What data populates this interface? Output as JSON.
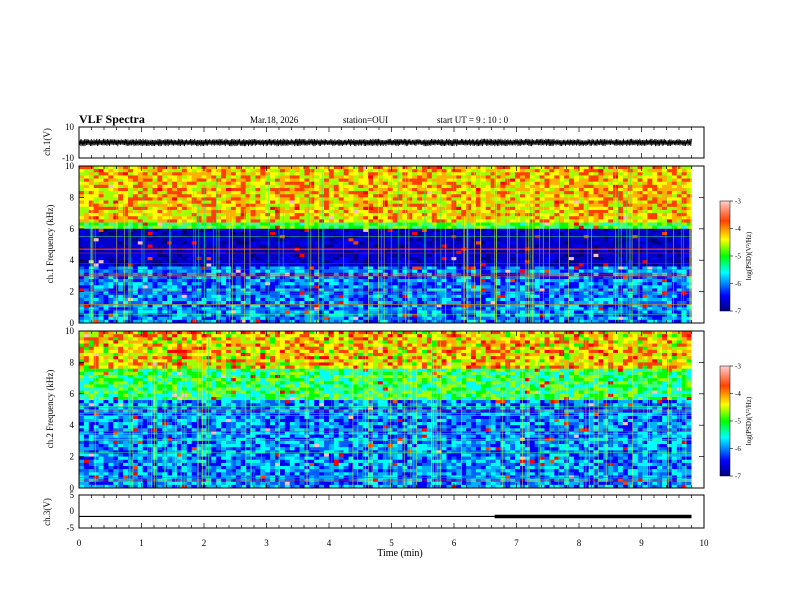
{
  "header": {
    "title": "VLF Spectra",
    "date": "Mar.18, 2026",
    "station": "station=OUI",
    "start_ut": "start  UT =   9 : 10 : 0"
  },
  "chart_data": [
    {
      "type": "line",
      "panel": "ch1-waveform",
      "ylabel": "ch.1(V)",
      "ylim": [
        -10,
        10
      ],
      "y_ticks": [
        "10",
        "-10"
      ],
      "x": [
        0,
        0.5,
        1,
        1.5,
        2,
        2.5,
        3,
        3.5,
        4,
        4.5,
        5,
        5.5,
        6,
        6.5,
        7,
        7.5,
        8,
        8.5,
        9,
        9.5,
        9.8
      ],
      "y": [
        0,
        0.3,
        -0.2,
        0.4,
        -0.3,
        0.2,
        0.1,
        -0.4,
        0.3,
        -0.1,
        0.2,
        -0.3,
        0.4,
        0.1,
        -0.2,
        0.3,
        -0.4,
        0.2,
        0.1,
        -0.3,
        0
      ],
      "envelope_volts": 2.2,
      "data_end_min": 9.8
    },
    {
      "type": "heatmap",
      "panel": "ch1-spectrogram",
      "ylabel": "ch.1 Frequency (kHz)",
      "ylim": [
        0,
        10
      ],
      "y_ticks": [
        "0",
        "2",
        "4",
        "6",
        "8",
        "10"
      ],
      "colorbar_label": "log(PSD)(V²/Hz)",
      "colorbar_range": [
        -7,
        -3
      ],
      "colorbar_ticks": [
        "-3",
        "-4",
        "-5",
        "-6",
        "-7"
      ],
      "quiet_band_khz": [
        3.5,
        6.2
      ],
      "data_end_min": 9.8
    },
    {
      "type": "heatmap",
      "panel": "ch2-spectrogram",
      "ylabel": "ch.2 Frequency (kHz)",
      "ylim": [
        0,
        10
      ],
      "y_ticks": [
        "0",
        "2",
        "4",
        "6",
        "8",
        "10"
      ],
      "colorbar_label": "log(PSD)(V²/Hz)",
      "colorbar_range": [
        -7,
        -3
      ],
      "colorbar_ticks": [
        "-3",
        "-4",
        "-5",
        "-6",
        "-7"
      ],
      "data_end_min": 9.8
    },
    {
      "type": "line",
      "panel": "ch3-signal",
      "ylabel": "ch.3(V)",
      "ylim": [
        -5,
        5
      ],
      "y_ticks": [
        "5",
        "0",
        "-5"
      ],
      "x": [
        0,
        6.65,
        6.65,
        9.8
      ],
      "y": [
        -1.5,
        -1.5,
        -1.5,
        -1.5
      ],
      "thick_segment_start_min": 6.65,
      "data_end_min": 9.8
    }
  ],
  "x_axis": {
    "label": "Time (min)",
    "xlim": [
      0,
      10
    ],
    "ticks": [
      "0",
      "1",
      "2",
      "3",
      "4",
      "5",
      "6",
      "7",
      "8",
      "9",
      "10"
    ]
  },
  "colors": {
    "colormap": [
      "#00007f",
      "#0000ff",
      "#00ffff",
      "#00ff00",
      "#ffff00",
      "#ff7f00",
      "#ff0000",
      "#7f0000"
    ]
  }
}
